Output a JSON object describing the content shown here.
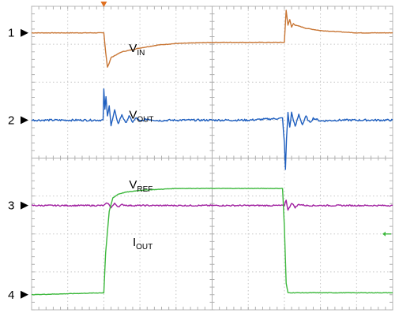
{
  "chart_data": {
    "type": "line",
    "title": "",
    "xlabel": "",
    "ylabel": "",
    "grid": true,
    "x_divisions": 10,
    "y_divisions": 8,
    "xlim": [
      0,
      10
    ],
    "ylim": [
      0,
      8
    ],
    "series": [
      {
        "name": "IN",
        "label_main": "V",
        "label_sub": "IN",
        "channel": "1",
        "color": "#c87533",
        "x": [
          0,
          2.0,
          2.05,
          2.1,
          2.15,
          2.2,
          2.3,
          2.5,
          3.0,
          3.5,
          4.0,
          5.0,
          6.0,
          7.0,
          7.05,
          7.1,
          7.15,
          7.2,
          7.25,
          7.3,
          7.4,
          7.6,
          8.0,
          9.0,
          10.0
        ],
        "y": [
          7.3,
          7.3,
          6.8,
          6.4,
          6.5,
          6.65,
          6.7,
          6.8,
          6.9,
          6.98,
          7.02,
          7.05,
          7.05,
          7.05,
          7.9,
          7.5,
          7.65,
          7.45,
          7.55,
          7.5,
          7.48,
          7.42,
          7.36,
          7.3,
          7.3
        ]
      },
      {
        "name": "OUT",
        "label_main": "V",
        "label_sub": "OUT",
        "channel": "2",
        "color": "#1f5fbf",
        "x": [
          0,
          1.98,
          2.0,
          2.03,
          2.06,
          2.1,
          2.15,
          2.2,
          2.3,
          2.4,
          2.5,
          2.6,
          2.7,
          2.8,
          2.9,
          3.0,
          3.2,
          3.5,
          4.0,
          5.0,
          6.0,
          6.95,
          7.0,
          7.03,
          7.06,
          7.1,
          7.15,
          7.2,
          7.3,
          7.4,
          7.5,
          7.6,
          7.7,
          7.8,
          8.0,
          8.5,
          9.0,
          10.0
        ],
        "y": [
          5.0,
          5.0,
          5.8,
          5.3,
          5.6,
          5.1,
          5.4,
          4.85,
          5.25,
          4.9,
          5.15,
          4.92,
          5.1,
          4.95,
          5.06,
          4.97,
          5.03,
          4.99,
          5.0,
          5.0,
          5.0,
          5.05,
          4.4,
          3.7,
          4.5,
          5.2,
          4.8,
          5.2,
          4.82,
          5.15,
          4.88,
          5.1,
          4.93,
          5.05,
          4.98,
          5.0,
          5.0,
          5.0
        ]
      },
      {
        "name": "REF",
        "label_main": "V",
        "label_sub": "REF",
        "channel": "3",
        "color": "#a020a0",
        "x": [
          0,
          2.0,
          2.1,
          2.2,
          2.3,
          2.4,
          2.5,
          2.7,
          5.0,
          7.0,
          7.05,
          7.1,
          7.2,
          7.3,
          7.4,
          7.6,
          10.0
        ],
        "y": [
          2.75,
          2.75,
          2.82,
          2.7,
          2.8,
          2.72,
          2.77,
          2.75,
          2.75,
          2.75,
          2.9,
          2.62,
          2.82,
          2.7,
          2.78,
          2.75,
          2.75
        ]
      },
      {
        "name": "OUT",
        "label_main": "I",
        "label_sub": "OUT",
        "channel": "4",
        "color": "#3cb83c",
        "x": [
          0,
          2.0,
          2.05,
          2.15,
          2.25,
          2.4,
          2.6,
          3.0,
          4.0,
          5.0,
          6.0,
          6.95,
          7.0,
          7.05,
          7.1,
          10.0
        ],
        "y": [
          0.4,
          0.45,
          1.5,
          2.6,
          2.95,
          3.05,
          3.1,
          3.15,
          3.2,
          3.2,
          3.2,
          3.2,
          2.2,
          0.7,
          0.45,
          0.45
        ]
      }
    ]
  }
}
